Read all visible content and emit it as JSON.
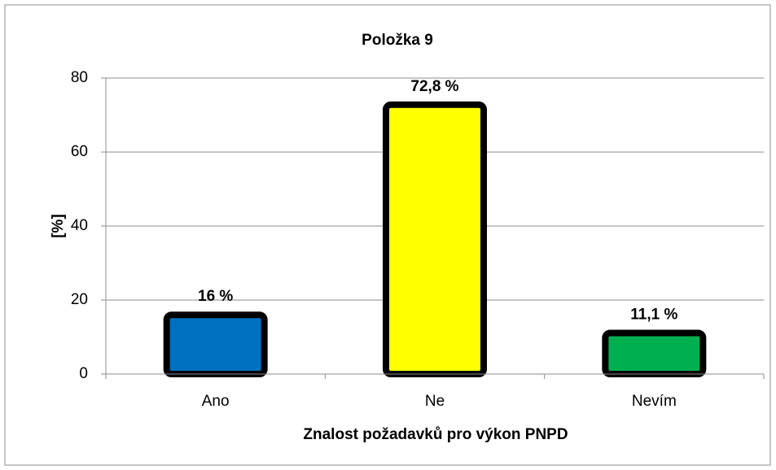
{
  "chart_data": {
    "type": "bar",
    "title": "Položka 9",
    "x_label": "Znalost požadavků pro výkon PNPD",
    "y_label": "[%]",
    "categories": [
      "Ano",
      "Ne",
      "Nevím"
    ],
    "values": [
      16,
      72.8,
      11.1
    ],
    "value_labels": [
      "16 %",
      "72,8 %",
      "11,1 %"
    ],
    "colors": [
      "#0070c0",
      "#ffff00",
      "#00b050"
    ],
    "ylim": [
      0,
      80
    ],
    "yticks": [
      0,
      20,
      40,
      60,
      80
    ],
    "grid": true
  }
}
